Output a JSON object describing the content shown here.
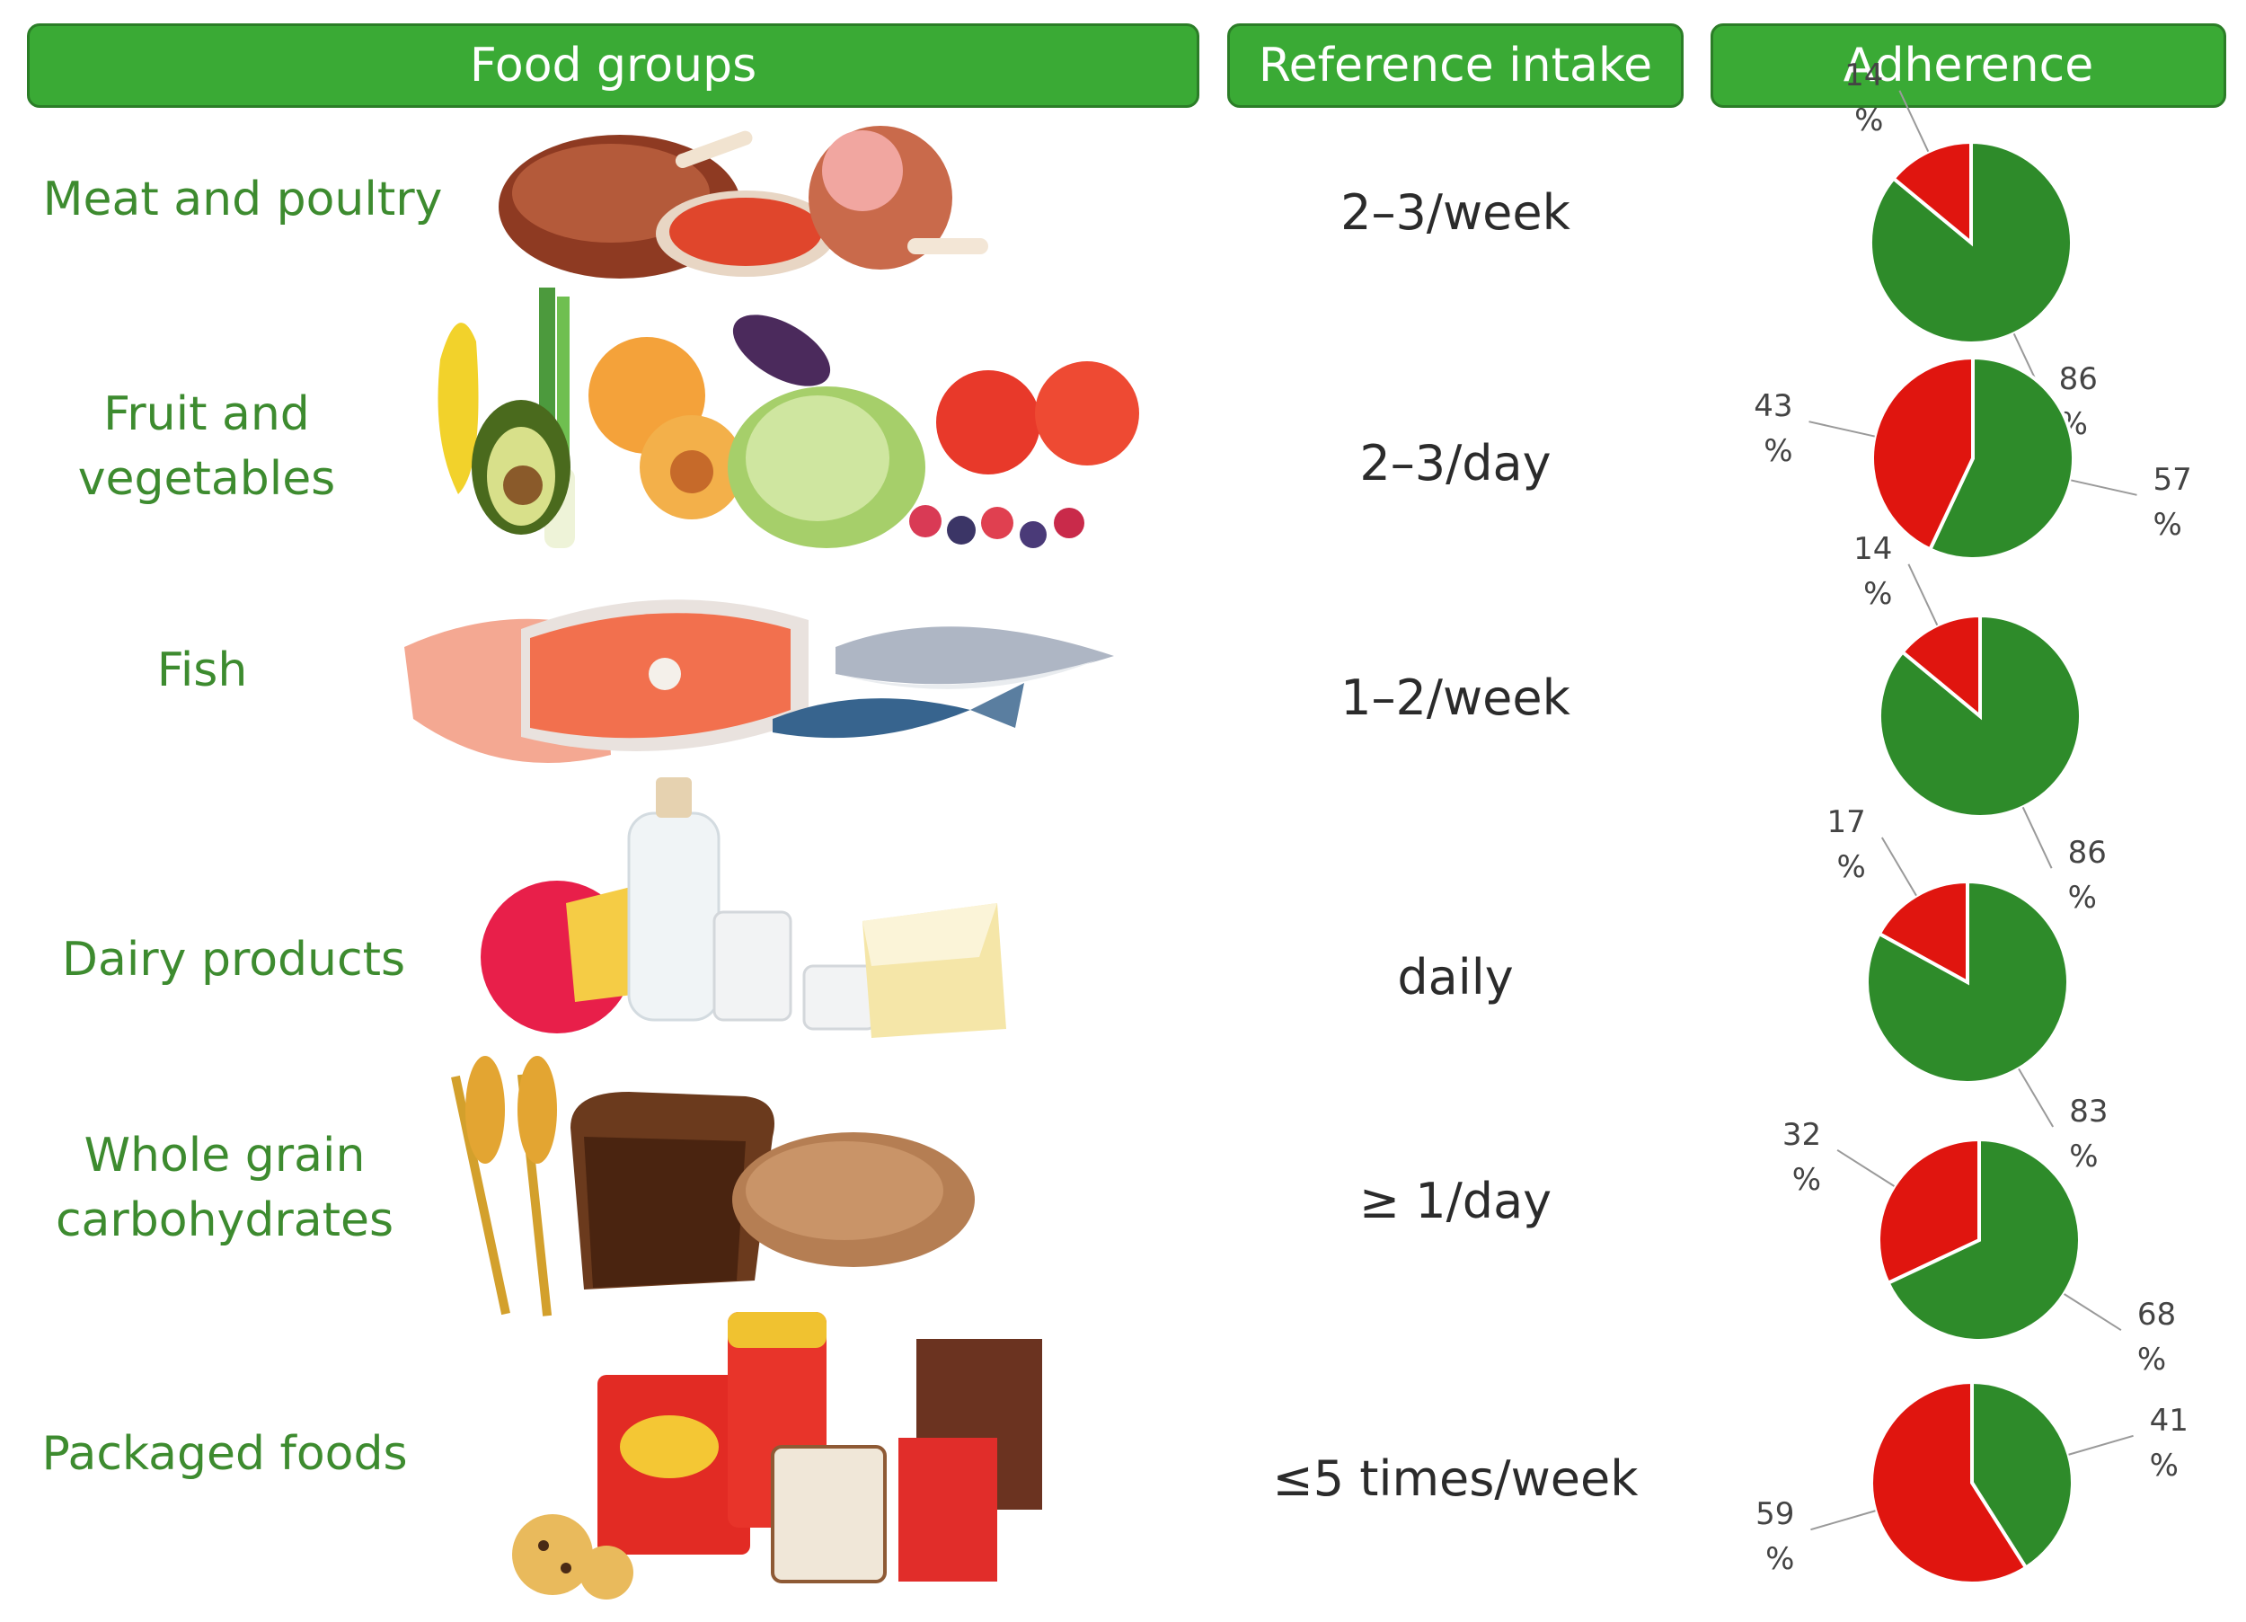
{
  "headers": {
    "food_groups": "Food groups",
    "reference_intake": "Reference intake",
    "adherence": "Adherence"
  },
  "rows": [
    {
      "group": "Meat and poultry",
      "intake": "2–3/week",
      "icon": "meat-illustration"
    },
    {
      "group": "Fruit and vegetables",
      "intake": "2–3/day",
      "icon": "fruit-vegetables-illustration"
    },
    {
      "group": "Fish",
      "intake": "1–2/week",
      "icon": "fish-illustration"
    },
    {
      "group": "Dairy products",
      "intake": "daily",
      "icon": "dairy-illustration"
    },
    {
      "group": "Whole grain carbohydrates",
      "intake": "≥ 1/day",
      "icon": "bread-grain-illustration"
    },
    {
      "group": "Packaged foods",
      "intake": "≤5 times/week",
      "icon": "packaged-foods-illustration"
    }
  ],
  "chart_data": [
    {
      "type": "pie",
      "category": "Meat and poultry",
      "values": [
        86,
        14
      ],
      "labels": [
        "86",
        "14"
      ],
      "unit": "%",
      "colors": [
        "#2e8b2a",
        "#e0150f"
      ]
    },
    {
      "type": "pie",
      "category": "Fruit and vegetables",
      "values": [
        57,
        43
      ],
      "labels": [
        "57",
        "43"
      ],
      "unit": "%",
      "colors": [
        "#2e8b2a",
        "#e0150f"
      ]
    },
    {
      "type": "pie",
      "category": "Fish",
      "values": [
        86,
        14
      ],
      "labels": [
        "86",
        "14"
      ],
      "unit": "%",
      "colors": [
        "#2e8b2a",
        "#e0150f"
      ]
    },
    {
      "type": "pie",
      "category": "Dairy products",
      "values": [
        83,
        17
      ],
      "labels": [
        "83",
        "17"
      ],
      "unit": "%",
      "colors": [
        "#2e8b2a",
        "#e0150f"
      ]
    },
    {
      "type": "pie",
      "category": "Whole grain carbohydrates",
      "values": [
        68,
        32
      ],
      "labels": [
        "68",
        "32"
      ],
      "unit": "%",
      "colors": [
        "#2e8b2a",
        "#e0150f"
      ]
    },
    {
      "type": "pie",
      "category": "Packaged foods",
      "values": [
        41,
        59
      ],
      "labels": [
        "41",
        "59"
      ],
      "unit": "%",
      "colors": [
        "#2e8b2a",
        "#e0150f"
      ]
    }
  ]
}
